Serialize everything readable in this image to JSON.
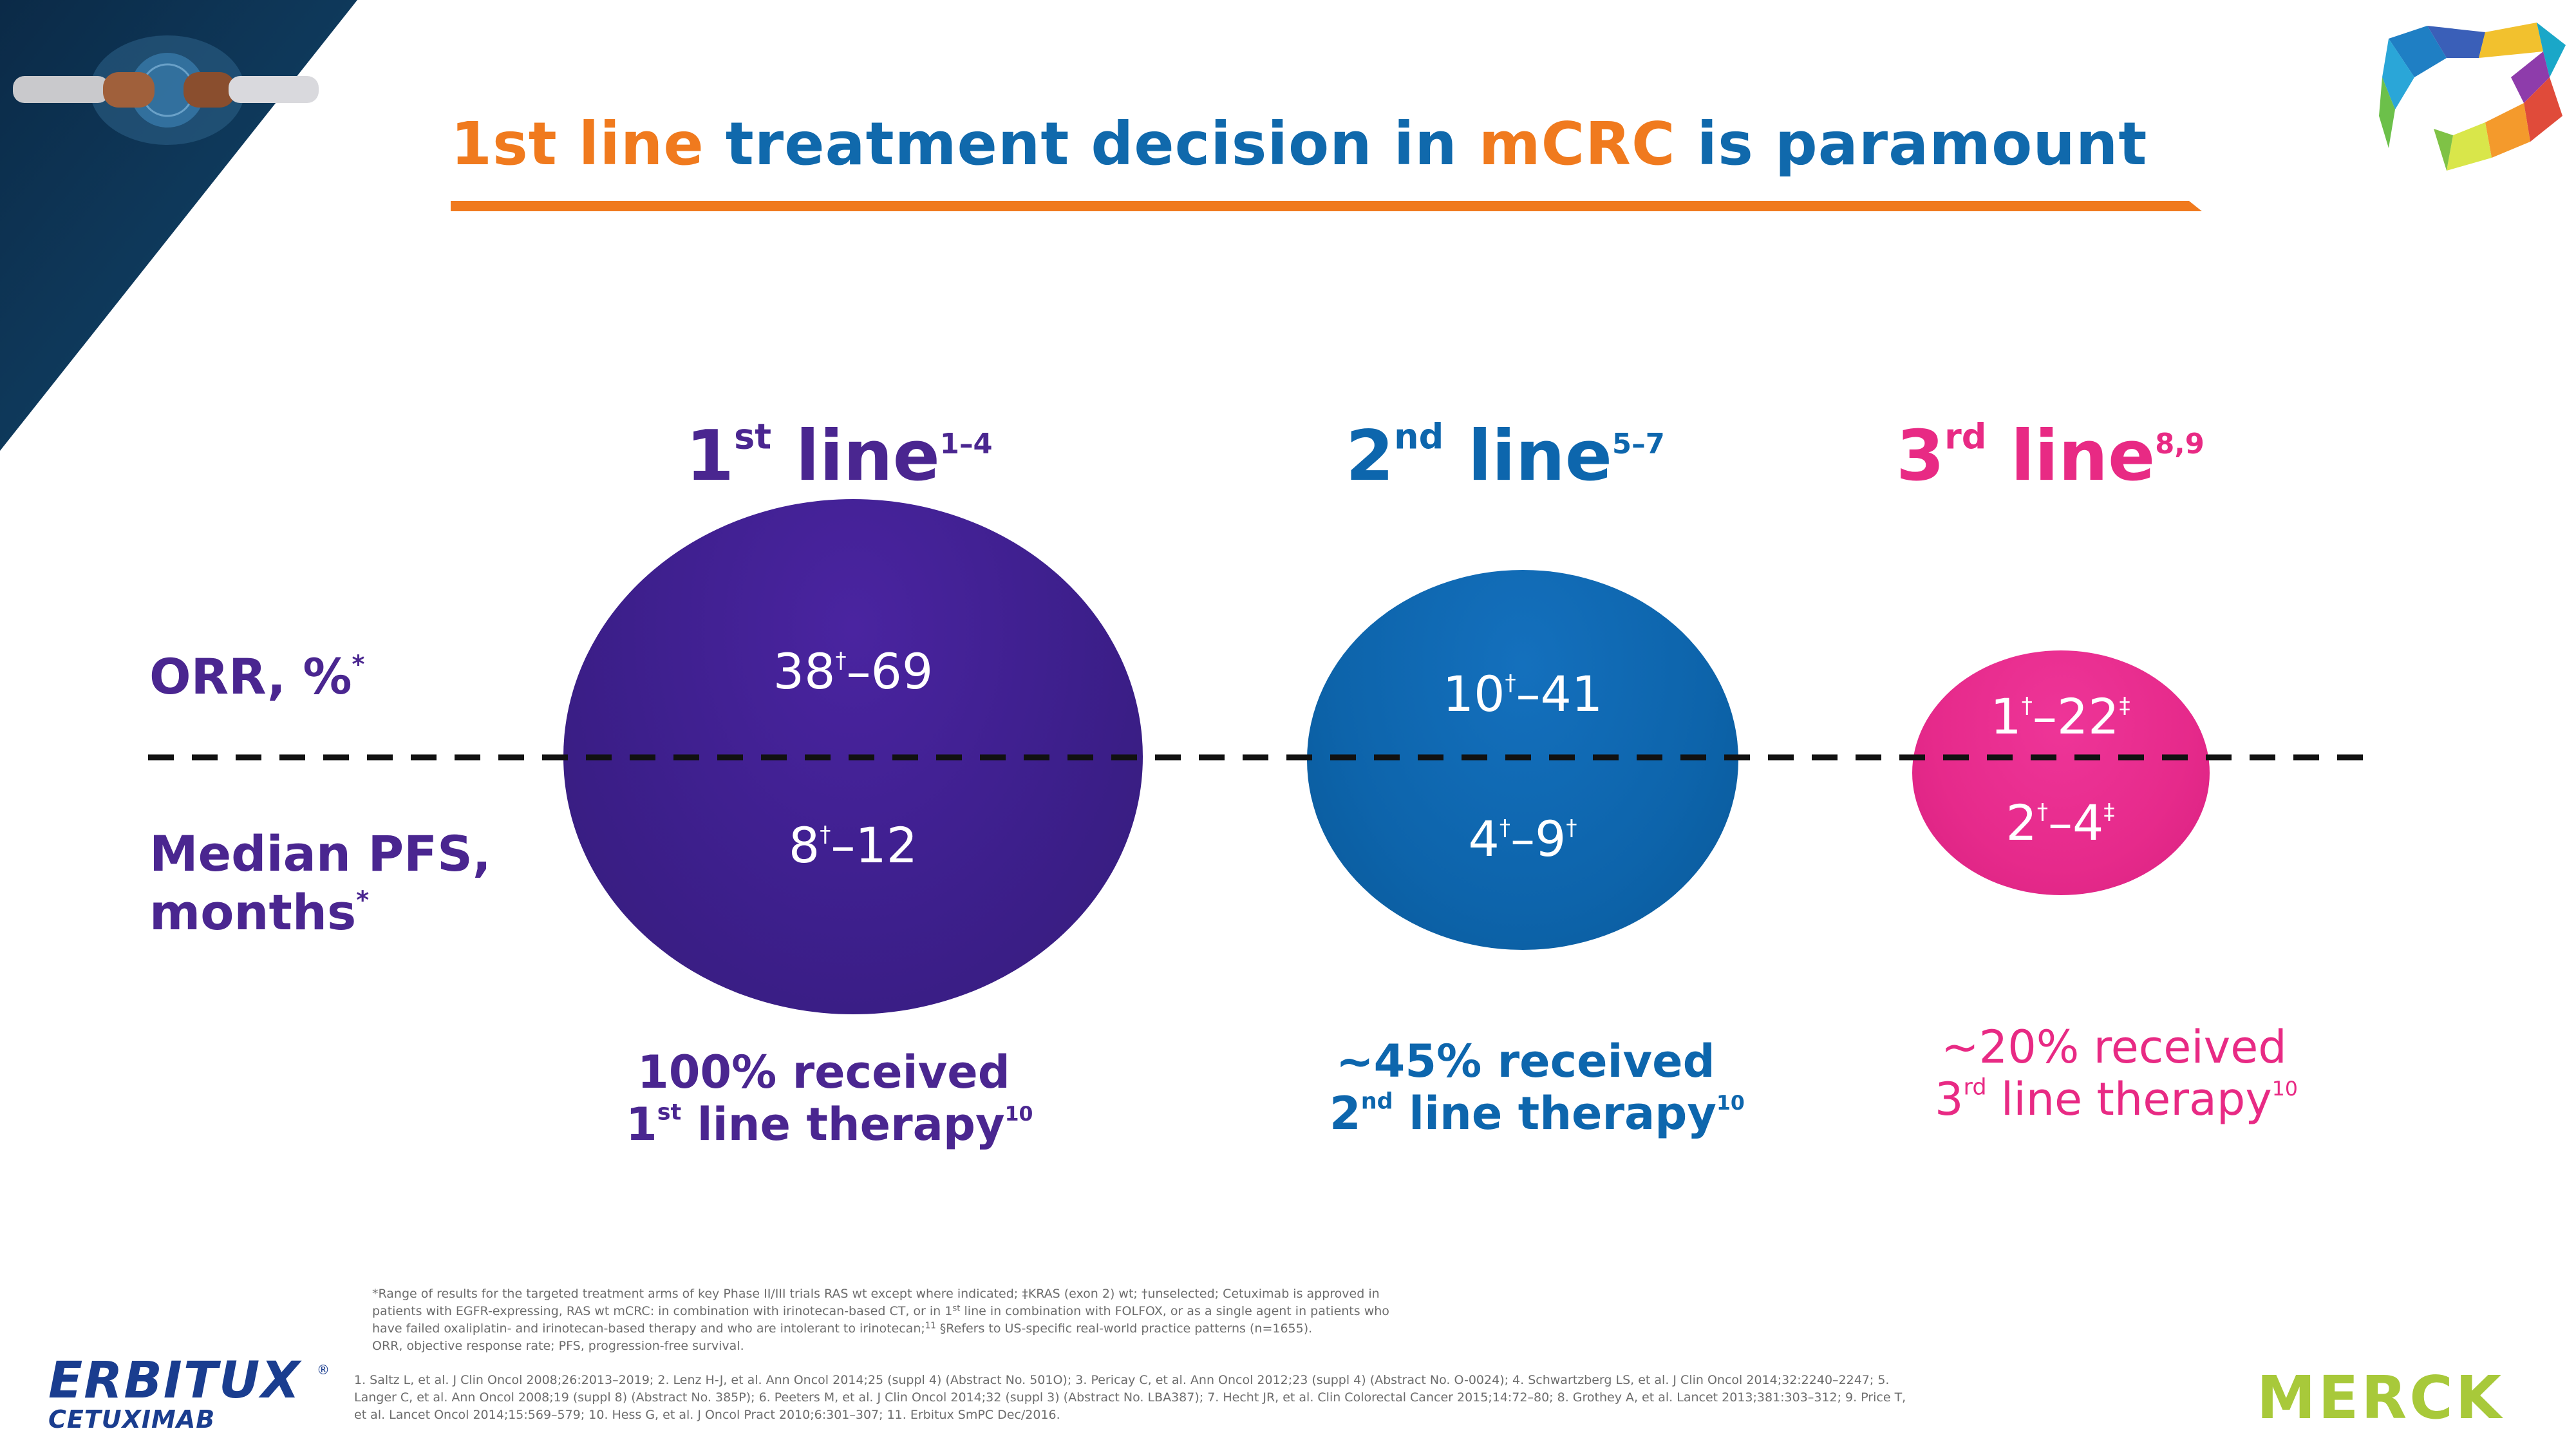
{
  "title": {
    "part1": "1st line",
    "part2": " treatment decision in ",
    "part3": "mCRC",
    "part4": " is paramount"
  },
  "lines": [
    {
      "num": "1",
      "ord": "st",
      "word": " line",
      "ref": "1–4",
      "orr_a": "38",
      "orr_mark": "†",
      "orr_b": "–69",
      "pfs_a": "8",
      "pfs_mark": "†",
      "pfs_b": "–12"
    },
    {
      "num": "2",
      "ord": "nd",
      "word": " line",
      "ref": "5–7",
      "orr_a": "10",
      "orr_mark": "†",
      "orr_b": "–41",
      "pfs_a": "4",
      "pfs_mark": "†",
      "pfs_b": "–9",
      "pfs_mark2": "†"
    },
    {
      "num": "3",
      "ord": "rd",
      "word": " line",
      "ref": "8,9",
      "orr_a": "1",
      "orr_mark": "†",
      "orr_b": "–22",
      "orr_mark2": "‡",
      "pfs_a": "2",
      "pfs_mark": "†",
      "pfs_b": "–4",
      "pfs_mark2": "‡"
    }
  ],
  "row_labels": {
    "orr": "ORR, %",
    "orr_mark": "*",
    "pfs_line1": "Median PFS,",
    "pfs_line2": "months",
    "pfs_mark": "*"
  },
  "received": [
    {
      "line1": "100% received",
      "num": "1",
      "ord": "st",
      "rest": " line therapy",
      "ref": "10"
    },
    {
      "line1": "~45% received",
      "num": "2",
      "ord": "nd",
      "rest": " line therapy",
      "ref": "10"
    },
    {
      "line1": "~20% received",
      "num": "3",
      "ord": "rd",
      "rest": " line therapy",
      "ref": "10"
    }
  ],
  "footnote": {
    "line1": "*Range of results for the targeted treatment arms of key Phase II/III trials RAS wt except where indicated; ‡KRAS (exon 2) wt; †unselected;  Cetuximab is approved in",
    "line2a": "patients with EGFR-expressing, RAS wt mCRC: in combination with irinotecan-based CT, or in 1",
    "line2sup": "st",
    "line2b": " line in combination with FOLFOX, or as a single agent in patients who",
    "line3a": "have failed oxaliplatin- and irinotecan-based therapy and who are intolerant to irinotecan;",
    "line3sup": "11",
    "line3b": " §Refers to US-specific real-world practice patterns (n=1655).",
    "line4": "ORR, objective response rate; PFS, progression-free survival."
  },
  "references": {
    "line1": "1. Saltz L, et al. J Clin Oncol 2008;26:2013–2019; 2. Lenz H-J, et al. Ann Oncol 2014;25 (suppl 4) (Abstract No. 501O); 3. Pericay C, et al. Ann Oncol 2012;23 (suppl 4) (Abstract No. O-0024); 4. Schwartzberg LS, et al. J Clin Oncol 2014;32:2240–2247; 5.",
    "line2": "Langer C, et al. Ann Oncol 2008;19 (suppl 8) (Abstract No. 385P); 6. Peeters M, et al. J Clin Oncol 2014;32 (suppl 3) (Abstract No. LBA387); 7. Hecht JR, et al. Clin Colorectal Cancer 2015;14:72–80; 8. Grothey A, et al. Lancet 2013;381:303–312; 9. Price T,",
    "line3": "et al. Lancet Oncol 2014;15:569–579; 10. Hess G, et al. J Oncol Pract 2010;6:301–307; 11. Erbitux SmPC Dec/2016."
  },
  "brands": {
    "erbitux": "ERBITUX",
    "erbitux_reg": "®",
    "cetuximab": "CETUXIMAB",
    "merck": "MERCK"
  },
  "colors": {
    "orange": "#f07a1e",
    "blue": "#1069ac",
    "purple": "#4a2690",
    "pink": "#e82a84",
    "navy": "#0d3a5c"
  }
}
